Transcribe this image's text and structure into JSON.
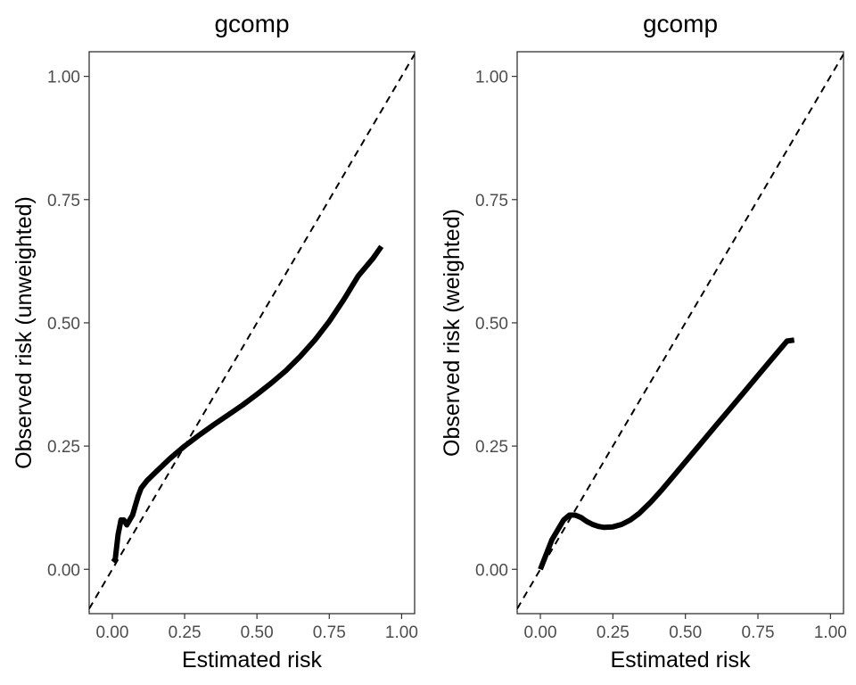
{
  "chart_data": [
    {
      "type": "line",
      "title": "gcomp",
      "xlabel": "Estimated risk",
      "ylabel": "Observed risk (unweighted)",
      "xlim": [
        -0.08,
        1.045
      ],
      "ylim": [
        -0.09,
        1.05
      ],
      "x_ticks": [
        0.0,
        0.25,
        0.5,
        0.75,
        1.0
      ],
      "x_tick_labels": [
        "0.00",
        "0.25",
        "0.50",
        "0.75",
        "1.00"
      ],
      "y_ticks": [
        0.0,
        0.25,
        0.5,
        0.75,
        1.0
      ],
      "y_tick_labels": [
        "0.00",
        "0.25",
        "0.50",
        "0.75",
        "1.00"
      ],
      "grid": false,
      "reference_line": {
        "type": "identity",
        "style": "dashed"
      },
      "series": [
        {
          "x": [
            0.003,
            0.01,
            0.02,
            0.03,
            0.04,
            0.05,
            0.06,
            0.07,
            0.08,
            0.09,
            0.1,
            0.12,
            0.15,
            0.2,
            0.25,
            0.3,
            0.35,
            0.4,
            0.45,
            0.5,
            0.55,
            0.6,
            0.65,
            0.7,
            0.75,
            0.8,
            0.85,
            0.9,
            0.93
          ],
          "y": [
            0.015,
            0.02,
            0.07,
            0.1,
            0.1,
            0.09,
            0.1,
            0.11,
            0.13,
            0.15,
            0.165,
            0.18,
            0.197,
            0.225,
            0.25,
            0.272,
            0.293,
            0.313,
            0.333,
            0.355,
            0.378,
            0.403,
            0.432,
            0.465,
            0.503,
            0.547,
            0.595,
            0.63,
            0.655
          ]
        }
      ]
    },
    {
      "type": "line",
      "title": "gcomp",
      "xlabel": "Estimated risk",
      "ylabel": "Observed risk (weighted)",
      "xlim": [
        -0.08,
        1.045
      ],
      "ylim": [
        -0.09,
        1.05
      ],
      "x_ticks": [
        0.0,
        0.25,
        0.5,
        0.75,
        1.0
      ],
      "x_tick_labels": [
        "0.00",
        "0.25",
        "0.50",
        "0.75",
        "1.00"
      ],
      "y_ticks": [
        0.0,
        0.25,
        0.5,
        0.75,
        1.0
      ],
      "y_tick_labels": [
        "0.00",
        "0.25",
        "0.50",
        "0.75",
        "1.00"
      ],
      "grid": false,
      "reference_line": {
        "type": "identity",
        "style": "dashed"
      },
      "series": [
        {
          "x": [
            0.0,
            0.02,
            0.04,
            0.06,
            0.08,
            0.1,
            0.12,
            0.14,
            0.16,
            0.18,
            0.2,
            0.22,
            0.25,
            0.28,
            0.31,
            0.34,
            0.38,
            0.42,
            0.46,
            0.5,
            0.55,
            0.6,
            0.65,
            0.7,
            0.75,
            0.8,
            0.85,
            0.875
          ],
          "y": [
            0.0,
            0.03,
            0.06,
            0.08,
            0.1,
            0.11,
            0.11,
            0.105,
            0.097,
            0.091,
            0.087,
            0.085,
            0.086,
            0.091,
            0.1,
            0.113,
            0.136,
            0.162,
            0.19,
            0.218,
            0.253,
            0.288,
            0.323,
            0.358,
            0.393,
            0.428,
            0.463,
            0.465
          ]
        }
      ]
    }
  ]
}
